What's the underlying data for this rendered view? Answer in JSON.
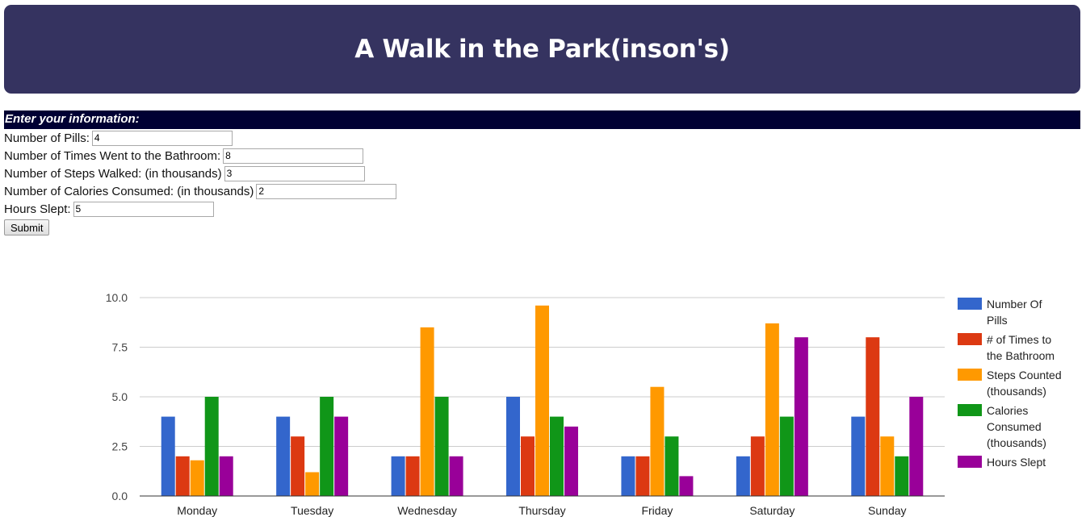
{
  "header": {
    "title": "A Walk in the Park(inson's)"
  },
  "form": {
    "title": "Enter your information:",
    "fields": [
      {
        "label": "Number of Pills:",
        "value": "4"
      },
      {
        "label": "Number of Times Went to the Bathroom:",
        "value": "8"
      },
      {
        "label": "Number of Steps Walked: (in thousands)",
        "value": "3"
      },
      {
        "label": "Number of Calories Consumed: (in thousands)",
        "value": "2"
      },
      {
        "label": "Hours Slept:",
        "value": "5"
      }
    ],
    "submit_label": "Submit"
  },
  "chart_data": {
    "type": "bar",
    "categories": [
      "Monday",
      "Tuesday",
      "Wednesday",
      "Thursday",
      "Friday",
      "Saturday",
      "Sunday"
    ],
    "series": [
      {
        "name": "Number Of Pills",
        "color": "#3366cc",
        "values": [
          4,
          4,
          2,
          5,
          2,
          2,
          4
        ]
      },
      {
        "name": "# of Times to the Bathroom",
        "color": "#dc3912",
        "values": [
          2,
          3,
          2,
          3,
          2,
          3,
          8
        ]
      },
      {
        "name": "Steps Counted (thousands)",
        "color": "#ff9900",
        "values": [
          1.8,
          1.2,
          8.5,
          9.6,
          5.5,
          8.7,
          3
        ]
      },
      {
        "name": "Calories Consumed (thousands)",
        "color": "#109618",
        "values": [
          5,
          5,
          5,
          4,
          3,
          4,
          2
        ]
      },
      {
        "name": "Hours Slept",
        "color": "#990099",
        "values": [
          2,
          4,
          2,
          3.5,
          1,
          8,
          5
        ]
      }
    ],
    "yticks": [
      "0.0",
      "2.5",
      "5.0",
      "7.5",
      "10.0"
    ],
    "ylim": [
      0,
      10
    ],
    "grid": true,
    "legend": "right"
  }
}
